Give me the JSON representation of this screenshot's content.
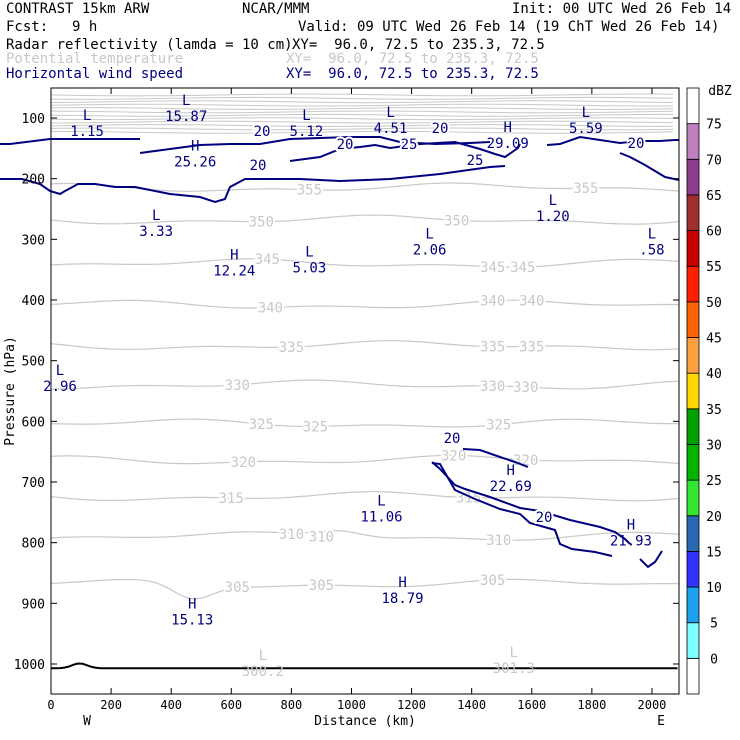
{
  "header": {
    "model": "CONTRAST 15km ARW",
    "org": "NCAR/MMM",
    "init": "Init: 00 UTC Wed 26 Feb 14",
    "fcst_label": "Fcst:",
    "fcst_value": "9 h",
    "valid": "Valid: 09 UTC Wed 26 Feb 14 (19 ChT Wed 26 Feb 14)",
    "fields": [
      {
        "name": "Radar reflectivity (lamda = 10 cm)",
        "xy": "XY=  96.0, 72.5 to 235.3, 72.5",
        "color": "#000000"
      },
      {
        "name": "Potential temperature",
        "xy": "XY=  96.0, 72.5 to 235.3, 72.5",
        "color": "#c8c8c8"
      },
      {
        "name": "Horizontal wind speed",
        "xy": "XY=  96.0, 72.5 to 235.3, 72.5",
        "color": "#000080"
      }
    ]
  },
  "chart_data": {
    "type": "cross-section",
    "xlabel": "Distance (km)",
    "ylabel": "Pressure (hPa)",
    "xlim": [
      0,
      2090
    ],
    "xticks": [
      0,
      200,
      400,
      600,
      800,
      1000,
      1200,
      1400,
      1600,
      1800,
      2000
    ],
    "yticks": [
      100,
      200,
      300,
      400,
      500,
      600,
      700,
      800,
      900,
      1000
    ],
    "end_labels": {
      "left": "W",
      "right": "E"
    },
    "colorbar": {
      "unit": "dBZ",
      "levels": [
        0,
        5,
        10,
        15,
        20,
        25,
        30,
        35,
        40,
        45,
        50,
        55,
        60,
        65,
        70,
        75
      ],
      "colors": [
        "#ffffff",
        "#7fffff",
        "#1ea0f0",
        "#3232ff",
        "#2a68b0",
        "#32e632",
        "#00b400",
        "#00a000",
        "#ffd700",
        "#ffa040",
        "#ff6400",
        "#ff2000",
        "#c80000",
        "#a03030",
        "#8c3c8c",
        "#c080c0",
        "#ffffff"
      ]
    },
    "theta_contours": [
      {
        "level": 305,
        "label_positions_km": [
          620,
          900,
          1470
        ]
      },
      {
        "level": 310,
        "label_positions_km": [
          800,
          900,
          1490
        ]
      },
      {
        "level": 315,
        "label_positions_km": [
          600,
          1390
        ]
      },
      {
        "level": 320,
        "label_positions_km": [
          640,
          1340,
          1580
        ]
      },
      {
        "level": 325,
        "label_positions_km": [
          700,
          880,
          1490
        ]
      },
      {
        "level": 330,
        "label_positions_km": [
          620,
          1470,
          1580
        ]
      },
      {
        "level": 335,
        "label_positions_km": [
          800,
          1470,
          1600
        ]
      },
      {
        "level": 340,
        "label_positions_km": [
          730,
          1470,
          1600
        ]
      },
      {
        "level": 345,
        "label_positions_km": [
          720,
          1470,
          1570
        ]
      },
      {
        "level": 350,
        "label_positions_km": [
          700,
          1350
        ]
      },
      {
        "level": 355,
        "label_positions_km": [
          860,
          1780
        ]
      }
    ],
    "theta_extrema": [
      {
        "type": "L",
        "value": "300.2",
        "x_km": 705,
        "p": 1000
      },
      {
        "type": "L",
        "value": "301.3",
        "x_km": 1540,
        "p": 995
      }
    ],
    "wind_contour_labels": [
      "20",
      "20",
      "20",
      "25",
      "25",
      "20",
      "20",
      "20",
      "20"
    ],
    "wind_extrema": [
      {
        "type": "L",
        "value": "1.15",
        "x_km": 120,
        "p": 110
      },
      {
        "type": "L",
        "value": "15.87",
        "x_km": 450,
        "p": 85
      },
      {
        "type": "H",
        "value": "25.26",
        "x_km": 480,
        "p": 160
      },
      {
        "type": "L",
        "value": "5.12",
        "x_km": 850,
        "p": 110
      },
      {
        "type": "L",
        "value": "4.51",
        "x_km": 1130,
        "p": 105
      },
      {
        "type": "H",
        "value": "29.09",
        "x_km": 1520,
        "p": 130
      },
      {
        "type": "L",
        "value": "5.59",
        "x_km": 1780,
        "p": 105
      },
      {
        "type": "L",
        "value": "3.33",
        "x_km": 350,
        "p": 275
      },
      {
        "type": "L",
        "value": "1.20",
        "x_km": 1670,
        "p": 250
      },
      {
        "type": "L",
        "value": "5.03",
        "x_km": 860,
        "p": 335
      },
      {
        "type": "L",
        "value": "2.06",
        "x_km": 1260,
        "p": 305
      },
      {
        "type": "L",
        "value": ".58",
        "x_km": 2000,
        "p": 305
      },
      {
        "type": "H",
        "value": "12.24",
        "x_km": 610,
        "p": 340
      },
      {
        "type": "L",
        "value": "2.96",
        "x_km": 30,
        "p": 530
      },
      {
        "type": "H",
        "value": "22.69",
        "x_km": 1530,
        "p": 695
      },
      {
        "type": "L",
        "value": "11.06",
        "x_km": 1100,
        "p": 745
      },
      {
        "type": "H",
        "value": "21.93",
        "x_km": 1930,
        "p": 785
      },
      {
        "type": "H",
        "value": "15.13",
        "x_km": 470,
        "p": 915
      },
      {
        "type": "H",
        "value": "18.79",
        "x_km": 1170,
        "p": 880
      }
    ]
  }
}
